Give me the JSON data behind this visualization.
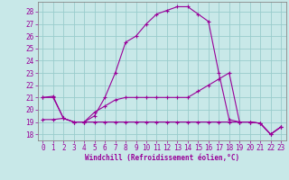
{
  "xlabel": "Windchill (Refroidissement éolien,°C)",
  "x_ticks": [
    0,
    1,
    2,
    3,
    4,
    5,
    6,
    7,
    8,
    9,
    10,
    11,
    12,
    13,
    14,
    15,
    16,
    17,
    18,
    19,
    20,
    21,
    22,
    23
  ],
  "ylim": [
    17.5,
    28.8
  ],
  "xlim": [
    -0.5,
    23.5
  ],
  "yticks": [
    18,
    19,
    20,
    21,
    22,
    23,
    24,
    25,
    26,
    27,
    28
  ],
  "background_color": "#c8e8e8",
  "line_color": "#990099",
  "grid_color": "#99cccc",
  "line1_y": [
    21.0,
    21.1,
    19.3,
    19.0,
    19.0,
    19.5,
    21.0,
    23.0,
    25.5,
    26.0,
    27.0,
    27.8,
    28.1,
    28.4,
    28.4,
    27.8,
    27.2,
    23.0,
    19.2,
    19.0,
    19.0,
    18.9,
    18.0,
    18.6
  ],
  "line2_y": [
    19.2,
    19.2,
    19.3,
    19.0,
    19.0,
    19.8,
    20.3,
    20.8,
    21.0,
    21.0,
    21.0,
    21.0,
    21.0,
    21.0,
    21.0,
    21.5,
    22.0,
    22.5,
    23.0,
    19.0,
    19.0,
    18.9,
    18.0,
    18.6
  ],
  "line3_y": [
    21.0,
    21.0,
    19.3,
    19.0,
    19.0,
    19.0,
    19.0,
    19.0,
    19.0,
    19.0,
    19.0,
    19.0,
    19.0,
    19.0,
    19.0,
    19.0,
    19.0,
    19.0,
    19.0,
    19.0,
    19.0,
    18.9,
    18.0,
    18.6
  ]
}
